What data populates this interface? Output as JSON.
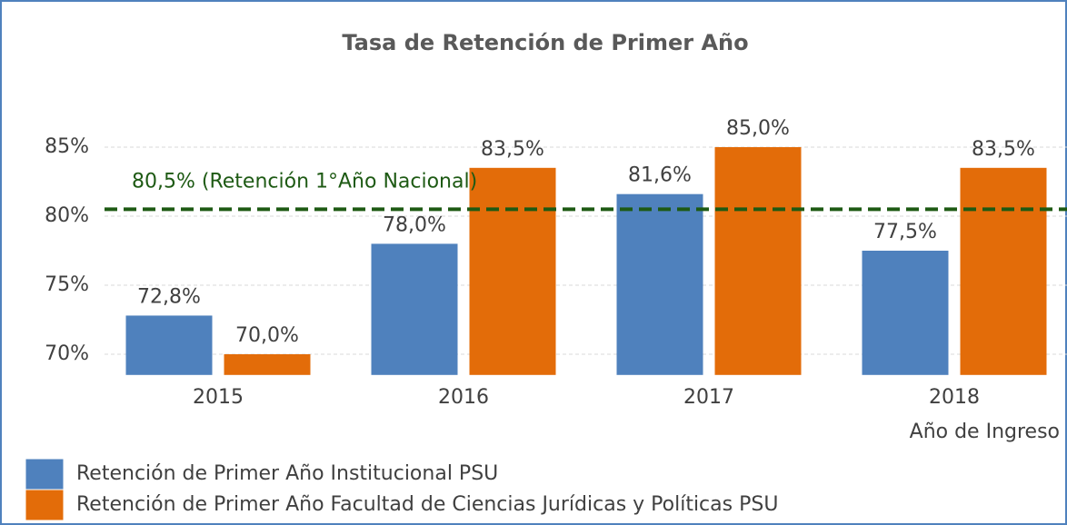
{
  "chart_data": {
    "type": "bar",
    "title": "Tasa de Retención de Primer Año",
    "x_label": "Año de Ingreso",
    "categories": [
      "2015",
      "2016",
      "2017",
      "2018"
    ],
    "series": [
      {
        "name": "Retención de Primer Año Institucional PSU",
        "color": "#4f81bd",
        "values": [
          72.8,
          78.0,
          81.6,
          77.5
        ],
        "value_labels": [
          "72,8%",
          "78,0%",
          "81,6%",
          "77,5%"
        ]
      },
      {
        "name": "Retención de Primer Año Facultad de Ciencias Jurídicas y Políticas PSU",
        "color": "#e36c09",
        "values": [
          70.0,
          83.5,
          85.0,
          83.5
        ],
        "value_labels": [
          "70,0%",
          "83,5%",
          "85,0%",
          "83,5%"
        ]
      }
    ],
    "ylim": [
      68.5,
      88
    ],
    "yticks": [
      {
        "value": 70,
        "label": "70%"
      },
      {
        "value": 75,
        "label": "75%"
      },
      {
        "value": 80,
        "label": "80%"
      },
      {
        "value": 85,
        "label": "85%"
      }
    ],
    "grid": true,
    "reference_line": {
      "value": 80.5,
      "label": "80,5% (Retención 1°Año Nacional)",
      "color": "#1e5a14"
    },
    "legend": "bottom-left"
  }
}
